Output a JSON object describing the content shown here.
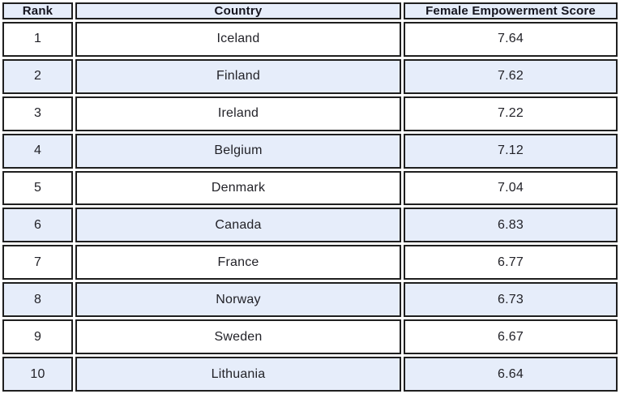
{
  "table": {
    "headers": [
      "Rank",
      "Country",
      "Female Empowerment Score"
    ],
    "rows": [
      {
        "rank": "1",
        "country": "Iceland",
        "score": "7.64"
      },
      {
        "rank": "2",
        "country": "Finland",
        "score": "7.62"
      },
      {
        "rank": "3",
        "country": "Ireland",
        "score": "7.22"
      },
      {
        "rank": "4",
        "country": "Belgium",
        "score": "7.12"
      },
      {
        "rank": "5",
        "country": "Denmark",
        "score": "7.04"
      },
      {
        "rank": "6",
        "country": "Canada",
        "score": "6.83"
      },
      {
        "rank": "7",
        "country": "France",
        "score": "6.77"
      },
      {
        "rank": "8",
        "country": "Norway",
        "score": "6.73"
      },
      {
        "rank": "9",
        "country": "Sweden",
        "score": "6.67"
      },
      {
        "rank": "10",
        "country": "Lithuania",
        "score": "6.64"
      }
    ]
  },
  "chart_data": {
    "type": "table",
    "title": "",
    "columns": [
      "Rank",
      "Country",
      "Female Empowerment Score"
    ],
    "rows": [
      [
        1,
        "Iceland",
        7.64
      ],
      [
        2,
        "Finland",
        7.62
      ],
      [
        3,
        "Ireland",
        7.22
      ],
      [
        4,
        "Belgium",
        7.12
      ],
      [
        5,
        "Denmark",
        7.04
      ],
      [
        6,
        "Canada",
        6.83
      ],
      [
        7,
        "France",
        6.77
      ],
      [
        8,
        "Norway",
        6.73
      ],
      [
        9,
        "Sweden",
        6.67
      ],
      [
        10,
        "Lithuania",
        6.64
      ]
    ]
  },
  "colors": {
    "header_bg": "#e6edfa",
    "row_alt_bg": "#e6edfa",
    "row_bg": "#ffffff",
    "border": "#1f1f1f",
    "header_text": "#15151f",
    "body_text": "#222228"
  }
}
